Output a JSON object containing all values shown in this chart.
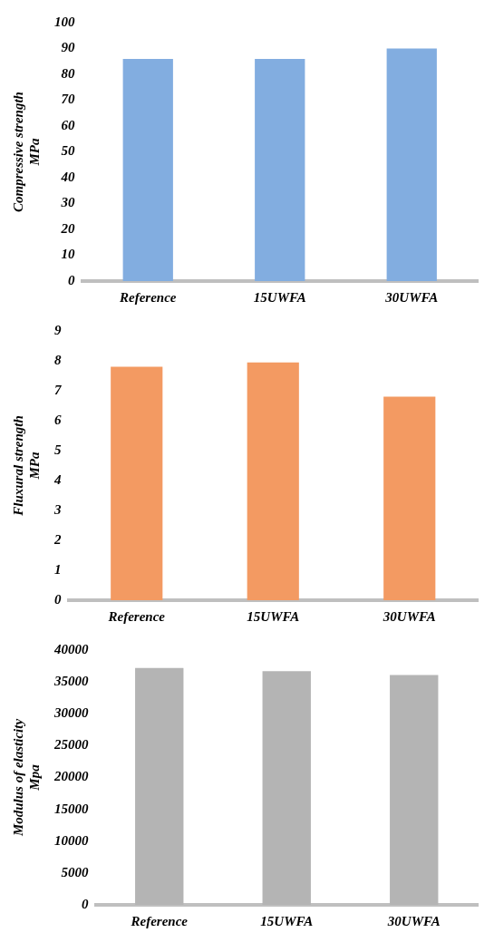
{
  "chart_data": [
    {
      "type": "bar",
      "ylabel": "Compressive strength\nMPa",
      "categories": [
        "Reference",
        "15UWFA",
        "30UWFA"
      ],
      "values": [
        86,
        86,
        90
      ],
      "color": "#82ade0",
      "ylim": [
        0,
        100
      ],
      "yticks": [
        0,
        10,
        20,
        30,
        40,
        50,
        60,
        70,
        80,
        90,
        100
      ]
    },
    {
      "type": "bar",
      "ylabel": "Fluxural strength\nMPa",
      "categories": [
        "Reference",
        "15UWFA",
        "30UWFA"
      ],
      "values": [
        7.8,
        7.95,
        6.8
      ],
      "color": "#f39a62",
      "ylim": [
        0,
        9
      ],
      "yticks": [
        0,
        1,
        2,
        3,
        4,
        5,
        6,
        7,
        8,
        9
      ]
    },
    {
      "type": "bar",
      "ylabel": "Modulus of elasticity\nMpa",
      "categories": [
        "Reference",
        "15UWFA",
        "30UWFA"
      ],
      "values": [
        37200,
        36700,
        36100
      ],
      "color": "#b4b4b4",
      "ylim": [
        0,
        40000
      ],
      "yticks": [
        0,
        5000,
        10000,
        15000,
        20000,
        25000,
        30000,
        35000,
        40000
      ]
    }
  ]
}
